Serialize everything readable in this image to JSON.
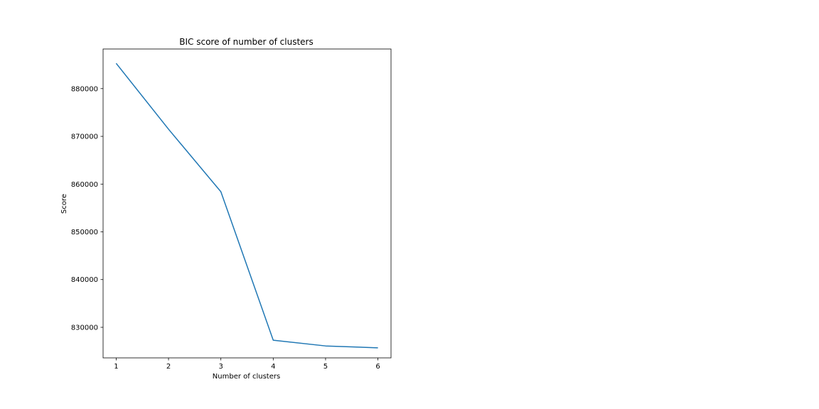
{
  "chart_data": {
    "type": "line",
    "title": "BIC score of number of clusters",
    "xlabel": "Number of clusters",
    "ylabel": "Score",
    "x": [
      1,
      2,
      3,
      4,
      5,
      6
    ],
    "series": [
      {
        "values": [
          885300,
          871500,
          858400,
          827300,
          826100,
          825700
        ],
        "color": "#1f77b4"
      }
    ],
    "xticks": [
      1,
      2,
      3,
      4,
      5,
      6
    ],
    "yticks": [
      830000,
      840000,
      850000,
      860000,
      870000,
      880000
    ],
    "xlim": [
      0.75,
      6.25
    ],
    "ylim": [
      823600,
      888300
    ],
    "grid": false
  }
}
